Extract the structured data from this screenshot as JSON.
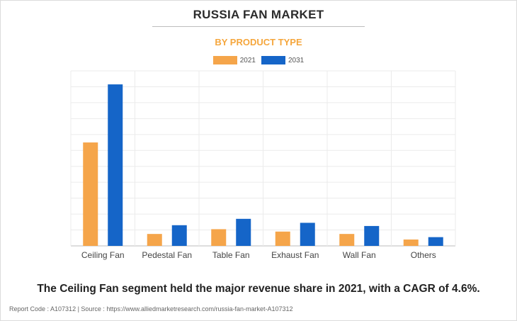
{
  "page": {
    "title": "RUSSIA FAN MARKET",
    "caption": "The Ceiling Fan segment held the major revenue share in 2021, with a CAGR of 4.6%.",
    "footer": "Report Code : A107312  |  Source : https://www.alliedmarketresearch.com/russia-fan-market-A107312"
  },
  "chart_data": {
    "type": "bar",
    "title": "BY PRODUCT TYPE",
    "categories": [
      "Ceiling Fan",
      "Pedestal Fan",
      "Table Fan",
      "Exhaust Fan",
      "Wall Fan",
      "Others"
    ],
    "series": [
      {
        "name": "2021",
        "color": "#f5a54a",
        "values": [
          65,
          7.5,
          10.5,
          9,
          7.5,
          4
        ]
      },
      {
        "name": "2031",
        "color": "#1565c8",
        "values": [
          101.5,
          13,
          17,
          14.5,
          12.5,
          5.5
        ]
      }
    ],
    "ylim": [
      0,
      110
    ],
    "grid": true,
    "legend_position": "top-center",
    "xlabel": "",
    "ylabel": ""
  }
}
